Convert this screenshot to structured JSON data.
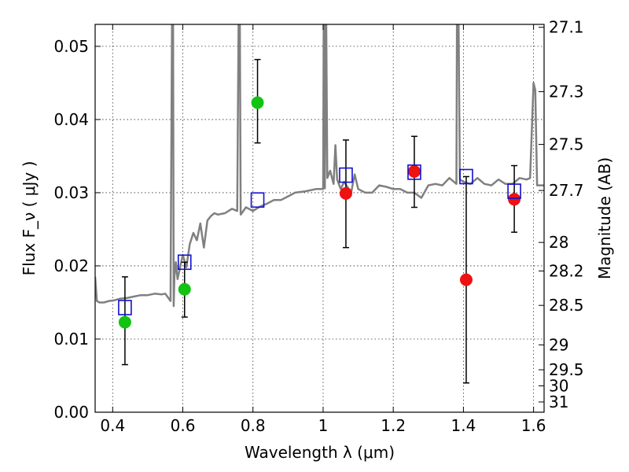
{
  "chart_data": {
    "type": "scatter",
    "xlabel": "Wavelength  λ (μm)",
    "ylabel": "Flux  F_ν  ( μJy )",
    "ylabel_right": "Magnitude (AB)",
    "xlim": [
      0.35,
      1.63
    ],
    "ylim": [
      0.0,
      0.053
    ],
    "grid": true,
    "x_ticks": [
      0.4,
      0.6,
      0.8,
      1.0,
      1.2,
      1.4,
      1.6
    ],
    "x_tick_labels": [
      "0.4",
      "0.6",
      "0.8",
      "1",
      "1.2",
      "1.4",
      "1.6"
    ],
    "y_ticks": [
      0.0,
      0.01,
      0.02,
      0.03,
      0.04,
      0.05
    ],
    "y_tick_labels": [
      "0.00",
      "0.01",
      "0.02",
      "0.03",
      "0.04",
      "0.05"
    ],
    "right_axis_ticks": [
      {
        "label": "27.1",
        "flux": 0.0526
      },
      {
        "label": "27.3",
        "flux": 0.0438
      },
      {
        "label": "27.5",
        "flux": 0.0366
      },
      {
        "label": "27.7",
        "flux": 0.0303
      },
      {
        "label": "28",
        "flux": 0.0232
      },
      {
        "label": "28.2",
        "flux": 0.0193
      },
      {
        "label": "28.5",
        "flux": 0.0146
      },
      {
        "label": "29",
        "flux": 0.0092
      },
      {
        "label": "29.5",
        "flux": 0.0058
      },
      {
        "label": "30",
        "flux": 0.0036
      },
      {
        "label": "31",
        "flux": 0.0014
      }
    ],
    "series": [
      {
        "type": "line",
        "color": "#808080",
        "x": [
          0.35,
          0.355,
          0.362,
          0.375,
          0.39,
          0.405,
          0.42,
          0.44,
          0.46,
          0.48,
          0.5,
          0.52,
          0.54,
          0.55,
          0.565,
          0.57,
          0.572,
          0.574,
          0.576,
          0.58,
          0.585,
          0.6,
          0.61,
          0.62,
          0.63,
          0.64,
          0.65,
          0.66,
          0.67,
          0.68,
          0.69,
          0.7,
          0.72,
          0.74,
          0.755,
          0.76,
          0.762,
          0.765,
          0.768,
          0.78,
          0.8,
          0.82,
          0.84,
          0.86,
          0.88,
          0.9,
          0.92,
          0.95,
          0.98,
          1.0,
          1.002,
          1.005,
          1.008,
          1.012,
          1.02,
          1.03,
          1.035,
          1.04,
          1.05,
          1.06,
          1.08,
          1.09,
          1.1,
          1.12,
          1.14,
          1.16,
          1.18,
          1.2,
          1.22,
          1.24,
          1.26,
          1.28,
          1.3,
          1.32,
          1.34,
          1.36,
          1.38,
          1.382,
          1.385,
          1.39,
          1.4,
          1.42,
          1.44,
          1.46,
          1.48,
          1.5,
          1.52,
          1.54,
          1.56,
          1.58,
          1.59,
          1.6,
          1.605,
          1.61,
          1.63
        ],
        "y": [
          0.0185,
          0.0152,
          0.015,
          0.015,
          0.0152,
          0.0153,
          0.0155,
          0.0156,
          0.0158,
          0.016,
          0.016,
          0.0162,
          0.0161,
          0.0162,
          0.0152,
          0.06,
          0.06,
          0.0145,
          0.0185,
          0.0205,
          0.0182,
          0.0215,
          0.0198,
          0.023,
          0.0245,
          0.0235,
          0.0258,
          0.0225,
          0.0262,
          0.0268,
          0.0272,
          0.027,
          0.0272,
          0.0278,
          0.0275,
          0.06,
          0.06,
          0.027,
          0.0272,
          0.028,
          0.0275,
          0.0281,
          0.0285,
          0.029,
          0.029,
          0.0295,
          0.03,
          0.0302,
          0.0305,
          0.0305,
          0.06,
          0.0306,
          0.06,
          0.032,
          0.033,
          0.0312,
          0.0365,
          0.0318,
          0.0305,
          0.0315,
          0.03,
          0.0325,
          0.0305,
          0.03,
          0.03,
          0.031,
          0.0308,
          0.0305,
          0.0305,
          0.03,
          0.03,
          0.0293,
          0.031,
          0.0312,
          0.031,
          0.032,
          0.0312,
          0.06,
          0.06,
          0.0318,
          0.0315,
          0.0312,
          0.032,
          0.0312,
          0.031,
          0.0318,
          0.0312,
          0.0312,
          0.032,
          0.0318,
          0.032,
          0.045,
          0.044,
          0.031,
          0.031
        ]
      },
      {
        "type": "scatter",
        "marker": "circle",
        "color": "#11c411",
        "x": [
          0.435,
          0.605,
          0.813
        ],
        "y": [
          0.0123,
          0.0168,
          0.0423
        ],
        "yerr_low": [
          0.0065,
          0.013,
          0.0368
        ],
        "yerr_high": [
          0.0185,
          0.0205,
          0.0482
        ]
      },
      {
        "type": "scatter",
        "marker": "circle",
        "color": "#ee1111",
        "x": [
          1.065,
          1.26,
          1.408,
          1.545
        ],
        "y": [
          0.0299,
          0.0329,
          0.0181,
          0.0291
        ],
        "yerr_low": [
          0.0225,
          0.028,
          0.004,
          0.0246
        ],
        "yerr_high": [
          0.0372,
          0.0377,
          0.0322,
          0.0337
        ]
      },
      {
        "type": "scatter",
        "marker": "open-square",
        "color": "#1010d0",
        "x": [
          0.435,
          0.605,
          0.813,
          1.065,
          1.26,
          1.408,
          1.545
        ],
        "y": [
          0.0143,
          0.0205,
          0.029,
          0.0324,
          0.0328,
          0.0322,
          0.0302
        ]
      }
    ]
  }
}
